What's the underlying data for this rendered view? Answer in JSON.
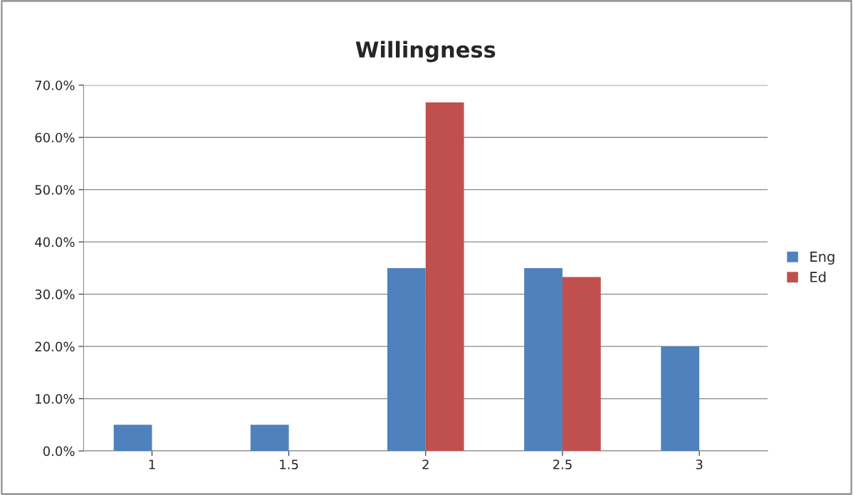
{
  "chart_data": {
    "type": "bar",
    "title": "Willingness",
    "categories": [
      "1",
      "1.5",
      "2",
      "2.5",
      "3"
    ],
    "series": [
      {
        "name": "Eng",
        "color": "#4f81bd",
        "values": [
          5,
          5,
          35,
          35,
          20
        ]
      },
      {
        "name": "Ed",
        "color": "#c0504d",
        "values": [
          null,
          null,
          66.7,
          33.3,
          null
        ]
      }
    ],
    "ylim": [
      0,
      70
    ],
    "yticks": [
      {
        "value": 0,
        "label": "0.0%"
      },
      {
        "value": 10,
        "label": "10.0%"
      },
      {
        "value": 20,
        "label": "20.0%"
      },
      {
        "value": 30,
        "label": "30.0%"
      },
      {
        "value": 40,
        "label": "40.0%"
      },
      {
        "value": 50,
        "label": "50.0%"
      },
      {
        "value": 60,
        "label": "60.0%"
      },
      {
        "value": 70,
        "label": "70.0%"
      }
    ],
    "grid": "y",
    "legend": "right"
  }
}
